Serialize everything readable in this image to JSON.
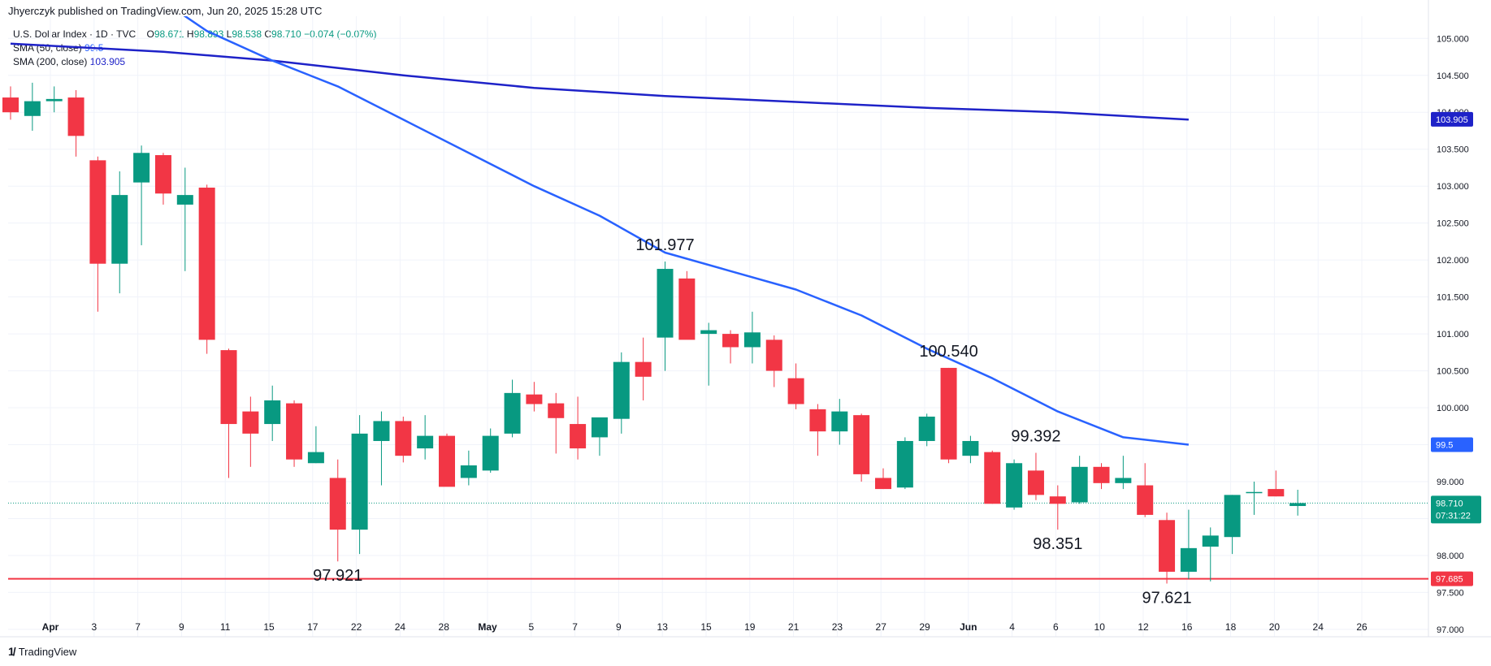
{
  "header": {
    "publish_line": "Jhyerczyk published on TradingView.com, Jun 20, 2025 15:28 UTC"
  },
  "legend": {
    "symbol": "U.S. Dollar Index · 1D · TVC",
    "o_label": "O",
    "o_value": "98.671",
    "h_label": "H",
    "h_value": "98.893",
    "l_label": "L",
    "l_value": "98.538",
    "c_label": "C",
    "c_value": "98.710",
    "change": "−0.074 (−0.07%)",
    "sma50_label": "SMA (50, close)",
    "sma50_value": "99.5",
    "sma200_label": "SMA (200, close)",
    "sma200_value": "103.905"
  },
  "footer": {
    "brand": "TradingView"
  },
  "colors": {
    "up": "#089981",
    "down": "#f23645",
    "sma50": "#2962ff",
    "sma200": "#1e22c8",
    "support": "#f23645",
    "price_line": "#089981"
  },
  "chart_data": {
    "type": "candlestick",
    "y_range": [
      96.9,
      105.3
    ],
    "y_ticks": [
      "97.000",
      "97.500",
      "98.000",
      "98.500",
      "99.000",
      "99.500",
      "100.000",
      "100.500",
      "101.000",
      "101.500",
      "102.000",
      "102.500",
      "103.000",
      "103.500",
      "104.000",
      "104.500",
      "105.000"
    ],
    "x_ticks": [
      "Apr",
      "3",
      "7",
      "9",
      "11",
      "15",
      "17",
      "22",
      "24",
      "28",
      "May",
      "5",
      "7",
      "9",
      "13",
      "15",
      "19",
      "21",
      "23",
      "27",
      "29",
      "Jun",
      "4",
      "6",
      "10",
      "12",
      "16",
      "18",
      "20",
      "24",
      "26"
    ],
    "candles": [
      [
        104.2,
        104.35,
        103.9,
        104.0
      ],
      [
        103.95,
        104.4,
        103.75,
        104.15
      ],
      [
        104.15,
        104.35,
        104.0,
        104.18
      ],
      [
        104.2,
        104.3,
        103.4,
        103.68
      ],
      [
        103.35,
        103.4,
        101.3,
        101.95
      ],
      [
        101.95,
        103.2,
        101.55,
        102.88
      ],
      [
        103.05,
        103.55,
        102.2,
        103.45
      ],
      [
        103.42,
        103.45,
        102.75,
        102.9
      ],
      [
        102.75,
        103.25,
        101.85,
        102.88
      ],
      [
        102.98,
        103.02,
        100.73,
        100.92
      ],
      [
        100.78,
        100.8,
        99.05,
        99.78
      ],
      [
        99.95,
        100.15,
        99.2,
        99.65
      ],
      [
        99.78,
        100.3,
        99.55,
        100.1
      ],
      [
        100.06,
        100.1,
        99.2,
        99.3
      ],
      [
        99.25,
        99.75,
        99.25,
        99.4
      ],
      [
        99.05,
        99.3,
        97.92,
        98.35
      ],
      [
        98.35,
        99.9,
        98.02,
        99.65
      ],
      [
        99.55,
        99.95,
        98.95,
        99.82
      ],
      [
        99.82,
        99.88,
        99.26,
        99.35
      ],
      [
        99.45,
        99.9,
        99.3,
        99.62
      ],
      [
        99.62,
        99.65,
        98.95,
        98.93
      ],
      [
        99.05,
        99.42,
        98.95,
        99.22
      ],
      [
        99.15,
        99.72,
        99.12,
        99.62
      ],
      [
        99.65,
        100.38,
        99.6,
        100.2
      ],
      [
        100.18,
        100.35,
        99.95,
        100.05
      ],
      [
        100.06,
        100.2,
        99.38,
        99.86
      ],
      [
        99.78,
        100.15,
        99.3,
        99.45
      ],
      [
        99.6,
        99.85,
        99.35,
        99.87
      ],
      [
        99.85,
        100.75,
        99.65,
        100.62
      ],
      [
        100.62,
        100.95,
        100.1,
        100.42
      ],
      [
        100.95,
        101.98,
        100.5,
        101.88
      ],
      [
        101.75,
        101.85,
        100.95,
        100.92
      ],
      [
        101.0,
        101.15,
        100.3,
        101.05
      ],
      [
        101.0,
        101.05,
        100.6,
        100.82
      ],
      [
        100.82,
        101.3,
        100.6,
        101.02
      ],
      [
        100.92,
        100.98,
        100.28,
        100.5
      ],
      [
        100.4,
        100.6,
        99.98,
        100.05
      ],
      [
        99.98,
        100.05,
        99.35,
        99.68
      ],
      [
        99.68,
        100.12,
        99.5,
        99.95
      ],
      [
        99.9,
        99.92,
        99.0,
        99.1
      ],
      [
        99.05,
        99.18,
        98.9,
        98.9
      ],
      [
        98.92,
        99.6,
        98.9,
        99.55
      ],
      [
        99.55,
        99.92,
        99.48,
        99.88
      ],
      [
        100.54,
        100.54,
        99.25,
        99.3
      ],
      [
        99.35,
        99.62,
        99.25,
        99.55
      ],
      [
        99.4,
        99.42,
        98.7,
        98.7
      ],
      [
        98.65,
        99.3,
        98.62,
        99.25
      ],
      [
        99.15,
        99.39,
        98.75,
        98.82
      ],
      [
        98.8,
        98.95,
        98.35,
        98.7
      ],
      [
        98.72,
        99.35,
        98.7,
        99.2
      ],
      [
        99.2,
        99.25,
        98.9,
        98.98
      ],
      [
        98.98,
        99.35,
        98.9,
        99.05
      ],
      [
        98.95,
        99.25,
        98.52,
        98.55
      ],
      [
        98.48,
        98.58,
        97.62,
        97.78
      ],
      [
        97.78,
        98.62,
        97.68,
        98.1
      ],
      [
        98.12,
        98.38,
        97.65,
        98.27
      ],
      [
        98.25,
        98.82,
        98.02,
        98.82
      ],
      [
        98.85,
        99.0,
        98.55,
        98.86
      ],
      [
        98.9,
        99.15,
        98.8,
        98.8
      ],
      [
        98.67,
        98.89,
        98.54,
        98.71
      ]
    ],
    "sma50": [
      [
        7,
        105.5
      ],
      [
        9,
        105.1
      ],
      [
        12,
        104.7
      ],
      [
        15,
        104.35
      ],
      [
        18,
        103.9
      ],
      [
        21,
        103.45
      ],
      [
        24,
        103.0
      ],
      [
        27,
        102.6
      ],
      [
        30,
        102.1
      ],
      [
        33,
        101.85
      ],
      [
        36,
        101.6
      ],
      [
        39,
        101.25
      ],
      [
        42,
        100.8
      ],
      [
        45,
        100.4
      ],
      [
        48,
        99.95
      ],
      [
        51,
        99.6
      ],
      [
        54,
        99.5
      ]
    ],
    "sma200": [
      [
        0,
        104.93
      ],
      [
        7,
        104.82
      ],
      [
        12,
        104.7
      ],
      [
        18,
        104.5
      ],
      [
        24,
        104.33
      ],
      [
        30,
        104.22
      ],
      [
        36,
        104.14
      ],
      [
        42,
        104.06
      ],
      [
        48,
        104.0
      ],
      [
        54,
        103.9
      ]
    ],
    "support_level": 97.685,
    "current_price": 98.71,
    "countdown": "07:31:22",
    "sma50_tag": "99.5",
    "sma200_tag": "103.905",
    "support_tag": "97.685",
    "price_tag": "98.710",
    "annotations": [
      {
        "text": "101.977",
        "bar": 30,
        "value": 101.977,
        "pos": "above"
      },
      {
        "text": "100.540",
        "bar": 43,
        "value": 100.54,
        "pos": "above"
      },
      {
        "text": "99.392",
        "bar": 47,
        "value": 99.392,
        "pos": "above"
      },
      {
        "text": "97.921",
        "bar": 15,
        "value": 97.921,
        "pos": "below"
      },
      {
        "text": "98.351",
        "bar": 48,
        "value": 98.351,
        "pos": "below"
      },
      {
        "text": "97.621",
        "bar": 53,
        "value": 97.621,
        "pos": "below"
      }
    ]
  }
}
